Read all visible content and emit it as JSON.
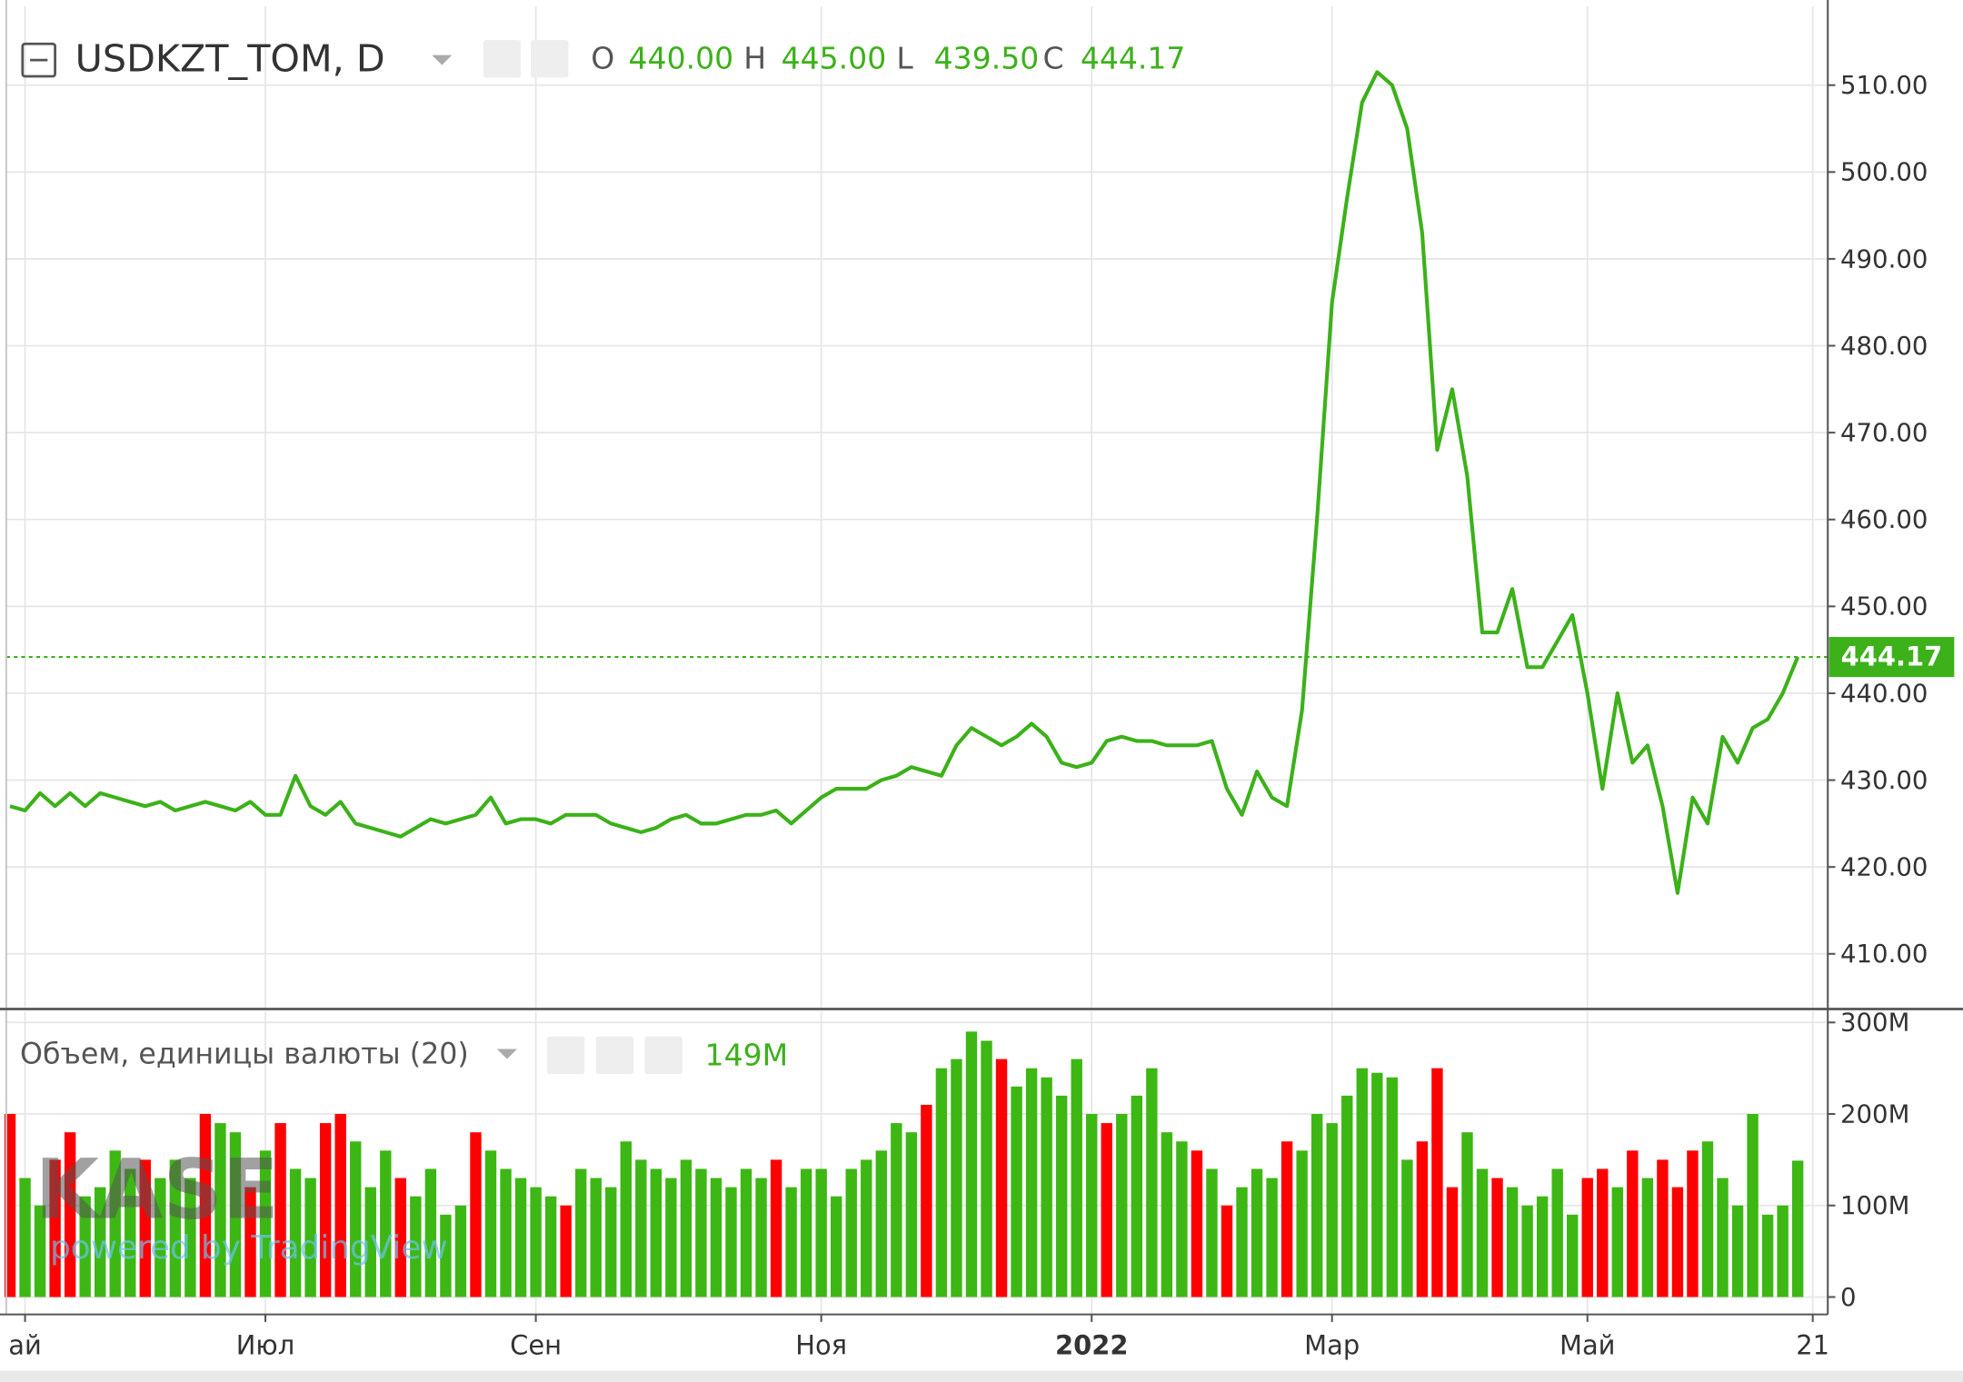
{
  "watermark": {
    "logo": "KASE",
    "text": "powered by TradingView"
  },
  "chart_data": [
    {
      "type": "line",
      "title": "USDKZT_TOM, D",
      "ohlc": [
        {
          "label": "O",
          "value": "440.00"
        },
        {
          "label": "H",
          "value": "445.00"
        },
        {
          "label": "L",
          "value": "439.50"
        },
        {
          "label": "C",
          "value": "444.17"
        }
      ],
      "categories": [
        null,
        "ай",
        null,
        null,
        null,
        null,
        null,
        null,
        null,
        null,
        null,
        null,
        null,
        null,
        null,
        null,
        null,
        "Июл",
        null,
        null,
        null,
        null,
        null,
        null,
        null,
        null,
        null,
        null,
        null,
        null,
        null,
        null,
        null,
        null,
        null,
        "Сен",
        null,
        null,
        null,
        null,
        null,
        null,
        null,
        null,
        null,
        null,
        null,
        null,
        null,
        null,
        null,
        null,
        null,
        null,
        "Ноя",
        null,
        null,
        null,
        null,
        null,
        null,
        null,
        null,
        null,
        null,
        null,
        null,
        null,
        null,
        null,
        null,
        null,
        "2022",
        null,
        null,
        null,
        null,
        null,
        null,
        null,
        null,
        null,
        null,
        null,
        null,
        null,
        null,
        null,
        "Мар",
        null,
        null,
        null,
        null,
        null,
        null,
        null,
        null,
        null,
        null,
        null,
        null,
        null,
        null,
        null,
        null,
        "Май",
        null,
        null,
        null,
        null,
        null,
        null,
        null,
        null,
        null,
        null,
        null,
        null,
        null,
        null,
        "21",
        null
      ],
      "values": [
        427,
        426.5,
        428.5,
        427,
        428.5,
        427,
        428.5,
        428,
        427.5,
        427,
        427.5,
        426.5,
        427,
        427.5,
        427,
        426.5,
        427.5,
        426,
        426,
        430.5,
        427,
        426,
        427.5,
        425,
        424.5,
        424,
        423.5,
        424.5,
        425.5,
        425,
        425.5,
        426,
        428,
        425,
        425.5,
        425.5,
        425,
        426,
        426,
        426,
        425,
        424.5,
        424,
        424.5,
        425.5,
        426,
        425,
        425,
        425.5,
        426,
        426,
        426.5,
        425,
        426.5,
        428,
        429,
        429,
        429,
        430,
        430.5,
        431.5,
        431,
        430.5,
        434,
        436,
        435,
        434,
        435,
        436.5,
        435,
        432,
        431.5,
        432,
        434.5,
        435,
        434.5,
        434.5,
        434,
        434,
        434,
        434.5,
        429,
        426,
        431,
        428,
        427,
        438,
        460,
        485,
        497,
        508,
        511.5,
        510,
        505,
        493,
        468,
        475,
        465,
        447,
        447,
        452,
        443,
        443,
        446,
        449,
        440,
        429,
        440,
        432,
        434,
        427,
        417,
        428,
        425,
        435,
        432,
        436,
        437,
        440,
        444.17,
        null,
        null
      ],
      "color": "#3cb11a",
      "ylim": [
        403.8,
        519.08
      ],
      "yticks": [
        {
          "value": 410,
          "label": "410.00"
        },
        {
          "value": 420,
          "label": "420.00"
        },
        {
          "value": 430,
          "label": "430.00"
        },
        {
          "value": 440,
          "label": "440.00"
        },
        {
          "value": 450,
          "label": "450.00"
        },
        {
          "value": 460,
          "label": "460.00"
        },
        {
          "value": 470,
          "label": "470.00"
        },
        {
          "value": 480,
          "label": "480.00"
        },
        {
          "value": 490,
          "label": "490.00"
        },
        {
          "value": 500,
          "label": "500.00"
        },
        {
          "value": 510,
          "label": "510.00"
        }
      ],
      "last_price": {
        "value": 444.17,
        "label": "444.17"
      },
      "grid": true
    },
    {
      "type": "bar",
      "title": "Объем, единицы валюты (20)",
      "last_value": "149M",
      "values": [
        200000000,
        130000000,
        100000000,
        150000000,
        180000000,
        110000000,
        120000000,
        160000000,
        140000000,
        150000000,
        130000000,
        150000000,
        130000000,
        200000000,
        190000000,
        180000000,
        120000000,
        160000000,
        190000000,
        140000000,
        130000000,
        190000000,
        200000000,
        170000000,
        120000000,
        160000000,
        130000000,
        110000000,
        140000000,
        90000000,
        100000000,
        180000000,
        160000000,
        140000000,
        130000000,
        120000000,
        110000000,
        100000000,
        140000000,
        130000000,
        120000000,
        170000000,
        150000000,
        140000000,
        130000000,
        150000000,
        140000000,
        130000000,
        120000000,
        140000000,
        130000000,
        150000000,
        120000000,
        140000000,
        140000000,
        110000000,
        140000000,
        150000000,
        160000000,
        190000000,
        180000000,
        210000000,
        250000000,
        260000000,
        290000000,
        280000000,
        260000000,
        230000000,
        250000000,
        240000000,
        220000000,
        260000000,
        200000000,
        190000000,
        200000000,
        220000000,
        250000000,
        180000000,
        170000000,
        160000000,
        140000000,
        100000000,
        120000000,
        140000000,
        130000000,
        170000000,
        160000000,
        200000000,
        190000000,
        220000000,
        250000000,
        245000000,
        240000000,
        150000000,
        170000000,
        250000000,
        120000000,
        180000000,
        140000000,
        130000000,
        120000000,
        100000000,
        110000000,
        140000000,
        90000000,
        130000000,
        140000000,
        120000000,
        160000000,
        130000000,
        150000000,
        120000000,
        160000000,
        170000000,
        130000000,
        100000000,
        200000000,
        90000000,
        100000000,
        149000000,
        null,
        null
      ],
      "colors": [
        "#ff0000",
        "#3db714",
        "#3db714",
        "#ff0000",
        "#ff0000",
        "#3db714",
        "#3db714",
        "#3db714",
        "#3db714",
        "#ff0000",
        "#3db714",
        "#3db714",
        "#3db714",
        "#ff0000",
        "#3db714",
        "#3db714",
        "#ff0000",
        "#3db714",
        "#ff0000",
        "#3db714",
        "#3db714",
        "#ff0000",
        "#ff0000",
        "#3db714",
        "#3db714",
        "#3db714",
        "#ff0000",
        "#3db714",
        "#3db714",
        "#3db714",
        "#3db714",
        "#ff0000",
        "#3db714",
        "#3db714",
        "#3db714",
        "#3db714",
        "#3db714",
        "#ff0000",
        "#3db714",
        "#3db714",
        "#3db714",
        "#3db714",
        "#3db714",
        "#3db714",
        "#3db714",
        "#3db714",
        "#3db714",
        "#3db714",
        "#3db714",
        "#3db714",
        "#3db714",
        "#ff0000",
        "#3db714",
        "#3db714",
        "#3db714",
        "#3db714",
        "#3db714",
        "#3db714",
        "#3db714",
        "#3db714",
        "#3db714",
        "#ff0000",
        "#3db714",
        "#3db714",
        "#3db714",
        "#3db714",
        "#ff0000",
        "#3db714",
        "#3db714",
        "#3db714",
        "#3db714",
        "#3db714",
        "#3db714",
        "#ff0000",
        "#3db714",
        "#3db714",
        "#3db714",
        "#3db714",
        "#3db714",
        "#ff0000",
        "#3db714",
        "#ff0000",
        "#3db714",
        "#3db714",
        "#3db714",
        "#ff0000",
        "#3db714",
        "#3db714",
        "#3db714",
        "#3db714",
        "#3db714",
        "#3db714",
        "#3db714",
        "#3db714",
        "#ff0000",
        "#ff0000",
        "#ff0000",
        "#3db714",
        "#3db714",
        "#ff0000",
        "#3db714",
        "#3db714",
        "#3db714",
        "#3db714",
        "#3db714",
        "#ff0000",
        "#ff0000",
        "#3db714",
        "#ff0000",
        "#3db714",
        "#ff0000",
        "#ff0000",
        "#ff0000",
        "#3db714",
        "#3db714",
        "#3db714",
        "#3db714",
        "#3db714",
        "#3db714",
        "#3db714",
        null,
        null
      ],
      "ylim": [
        -19000000,
        312000000
      ],
      "yticks": [
        0,
        {
          "value": 100000000,
          "label": "100M"
        },
        {
          "value": 200000000,
          "label": "200M"
        },
        {
          "value": 300000000,
          "label": "300M"
        }
      ],
      "grid": true
    }
  ]
}
